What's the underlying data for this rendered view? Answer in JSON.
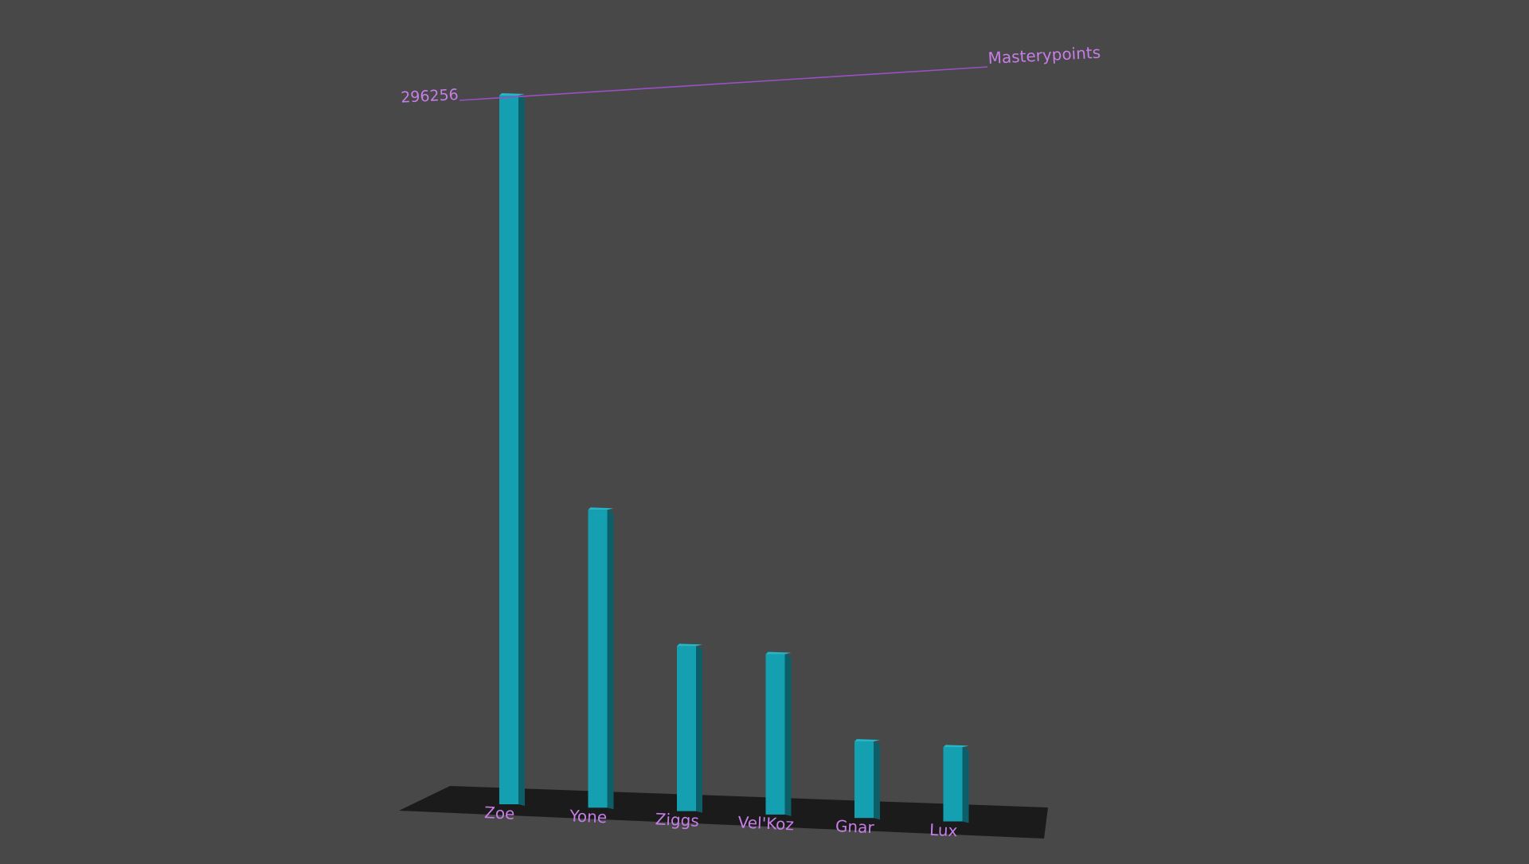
{
  "colors": {
    "background": "#484848",
    "bar_front": "#14a0b0",
    "bar_side": "#0c5f69",
    "bar_top": "#22b8c8",
    "floor": "#1b1b1b",
    "label": "#c77ee6",
    "axis_line": "#9b4fc7"
  },
  "chart_data": {
    "type": "bar",
    "render": "3d",
    "title": "",
    "xlabel": "",
    "ylabel": "Masterypoints",
    "categories": [
      "Zoe",
      "Yone",
      "Ziggs",
      "Vel'Koz",
      "Gnar",
      "Lux"
    ],
    "values": [
      296256,
      124500,
      69000,
      67000,
      32000,
      31000
    ],
    "max_label": "296256",
    "ylim": [
      0,
      296256
    ],
    "grid": false
  }
}
